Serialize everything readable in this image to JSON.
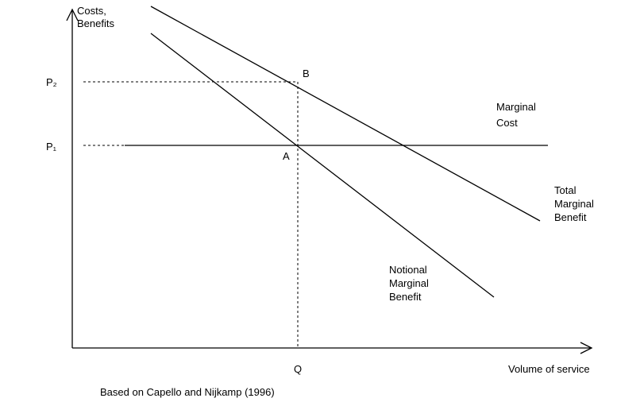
{
  "axes": {
    "y_label": [
      "Costs,",
      "Benefits"
    ],
    "x_label": "Volume of service"
  },
  "levels": {
    "p2": "P₂",
    "p1": "P₁",
    "q": "Q"
  },
  "points": {
    "b": "B",
    "a": "A"
  },
  "curves": {
    "marginal_cost": [
      "Marginal",
      "Cost"
    ],
    "total_marginal_benefit": [
      "Total",
      "Marginal",
      "Benefit"
    ],
    "notional_marginal_benefit": [
      "Notional",
      "Marginal",
      "Benefit"
    ]
  },
  "source": "Based on Capello and Nijkamp (1996)"
}
